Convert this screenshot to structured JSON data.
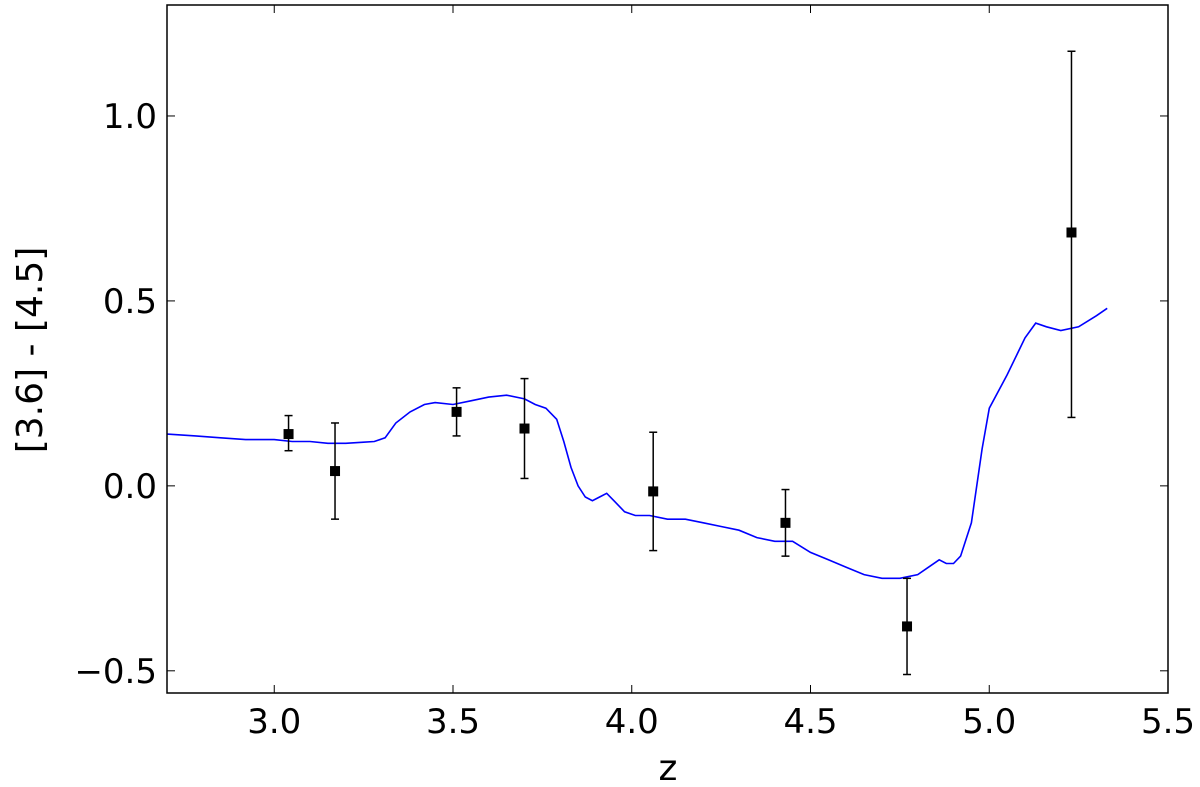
{
  "chart_data": {
    "type": "scatter",
    "title": "",
    "xlabel": "z",
    "ylabel": "[3.6] - [4.5]",
    "xlim": [
      2.7,
      5.5
    ],
    "ylim": [
      -0.56,
      1.3
    ],
    "grid": false,
    "x_ticks": [
      {
        "value": 3.0,
        "label": "3.0"
      },
      {
        "value": 3.5,
        "label": "3.5"
      },
      {
        "value": 4.0,
        "label": "4.0"
      },
      {
        "value": 4.5,
        "label": "4.5"
      },
      {
        "value": 5.0,
        "label": "5.0"
      },
      {
        "value": 5.5,
        "label": "5.5"
      }
    ],
    "y_ticks": [
      {
        "value": -0.5,
        "label": "−0.5"
      },
      {
        "value": 0.0,
        "label": "0.0"
      },
      {
        "value": 0.5,
        "label": "0.5"
      },
      {
        "value": 1.0,
        "label": "1.0"
      }
    ],
    "series": [
      {
        "kind": "line",
        "color": "#0000ff",
        "x": [
          2.7,
          2.78,
          2.85,
          2.92,
          3.0,
          3.05,
          3.1,
          3.15,
          3.2,
          3.25,
          3.28,
          3.31,
          3.34,
          3.38,
          3.42,
          3.45,
          3.5,
          3.55,
          3.6,
          3.65,
          3.7,
          3.73,
          3.76,
          3.79,
          3.81,
          3.83,
          3.85,
          3.87,
          3.89,
          3.91,
          3.93,
          3.95,
          3.98,
          4.01,
          4.05,
          4.1,
          4.15,
          4.2,
          4.25,
          4.3,
          4.35,
          4.4,
          4.45,
          4.5,
          4.55,
          4.6,
          4.65,
          4.7,
          4.75,
          4.8,
          4.83,
          4.86,
          4.88,
          4.9,
          4.92,
          4.95,
          4.98,
          5.0,
          5.05,
          5.1,
          5.13,
          5.16,
          5.2,
          5.25,
          5.3,
          5.33
        ],
        "y": [
          0.14,
          0.135,
          0.13,
          0.125,
          0.125,
          0.12,
          0.12,
          0.115,
          0.115,
          0.118,
          0.12,
          0.13,
          0.17,
          0.2,
          0.22,
          0.225,
          0.22,
          0.23,
          0.24,
          0.245,
          0.235,
          0.22,
          0.21,
          0.18,
          0.12,
          0.05,
          0.0,
          -0.03,
          -0.04,
          -0.03,
          -0.02,
          -0.04,
          -0.07,
          -0.08,
          -0.08,
          -0.09,
          -0.09,
          -0.1,
          -0.11,
          -0.12,
          -0.14,
          -0.15,
          -0.15,
          -0.18,
          -0.2,
          -0.22,
          -0.24,
          -0.25,
          -0.25,
          -0.24,
          -0.22,
          -0.2,
          -0.21,
          -0.21,
          -0.19,
          -0.1,
          0.1,
          0.21,
          0.3,
          0.4,
          0.44,
          0.43,
          0.42,
          0.43,
          0.46,
          0.48
        ]
      },
      {
        "kind": "errorbar",
        "color": "#000000",
        "x": [
          3.04,
          3.17,
          3.51,
          3.7,
          4.06,
          4.43,
          4.77,
          5.23
        ],
        "y": [
          0.14,
          0.04,
          0.2,
          0.155,
          -0.015,
          -0.1,
          -0.38,
          0.685
        ],
        "yerr_low": [
          0.045,
          0.13,
          0.065,
          0.135,
          0.16,
          0.09,
          0.13,
          0.5
        ],
        "yerr_high": [
          0.05,
          0.13,
          0.065,
          0.135,
          0.16,
          0.09,
          0.13,
          0.49
        ]
      }
    ]
  }
}
